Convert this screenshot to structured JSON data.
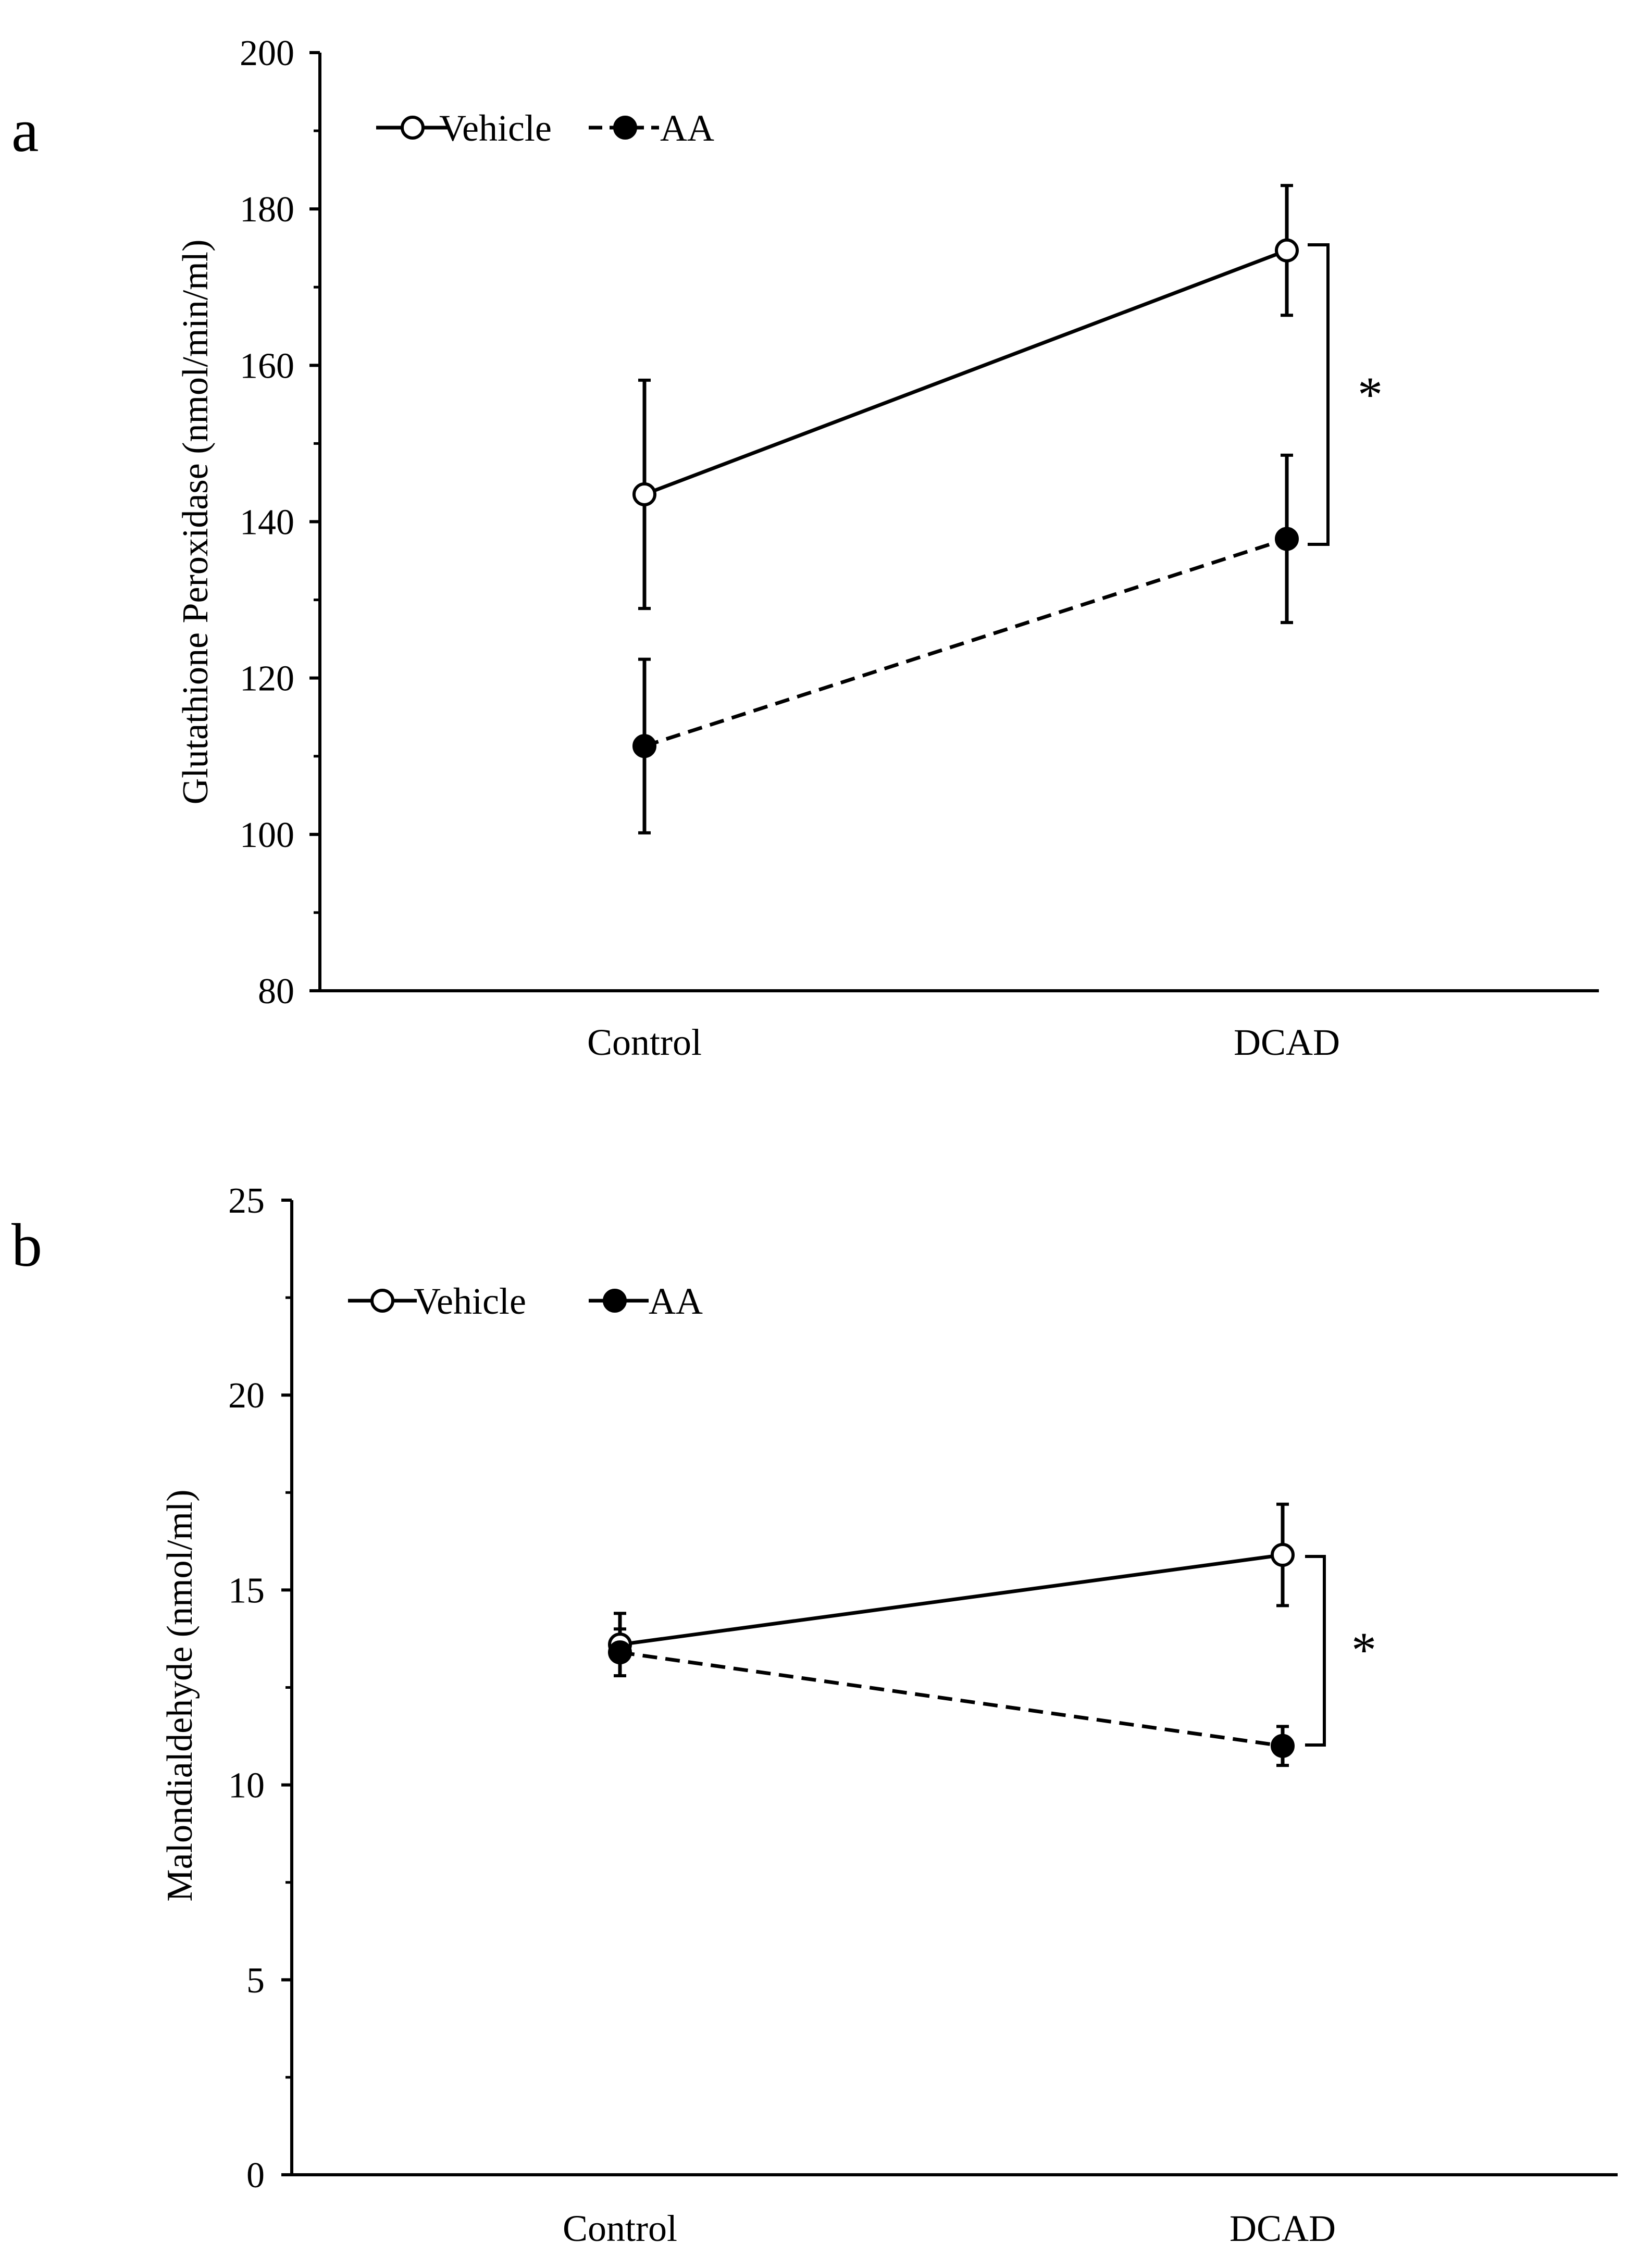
{
  "colors": {
    "ink": "#000000",
    "background": "#ffffff"
  },
  "chart_data": [
    {
      "panel_label": "a",
      "type": "line",
      "title": "",
      "xlabel": "",
      "ylabel": "Glutathione Peroxidase (nmol/min/ml)",
      "categories": [
        "Control",
        "DCAD"
      ],
      "ylim": [
        80,
        200
      ],
      "yticks": [
        "80",
        "100",
        "120",
        "140",
        "160",
        "180",
        "200"
      ],
      "legend": {
        "position": "top-left"
      },
      "series": [
        {
          "name": "Vehicle",
          "line_style": "solid",
          "marker": "open-circle",
          "values": [
            143.5,
            174.7
          ],
          "errors": [
            14.6,
            8.3
          ]
        },
        {
          "name": "AA",
          "line_style": "dashed",
          "marker": "filled-circle",
          "values": [
            111.3,
            137.8
          ],
          "errors": [
            11.1,
            10.7
          ]
        }
      ],
      "annotations": [
        {
          "text": "*",
          "between_category": "DCAD"
        }
      ]
    },
    {
      "panel_label": "b",
      "type": "line",
      "title": "",
      "xlabel": "",
      "ylabel": "Malondialdehyde (nmol/ml)",
      "categories": [
        "Control",
        "DCAD"
      ],
      "ylim": [
        0,
        25
      ],
      "yticks": [
        "0",
        "5",
        "10",
        "15",
        "20",
        "25"
      ],
      "legend": {
        "position": "top-left"
      },
      "series": [
        {
          "name": "Vehicle",
          "line_style": "solid",
          "marker": "open-circle",
          "values": [
            13.6,
            15.9
          ],
          "errors": [
            0.8,
            1.3
          ]
        },
        {
          "name": "AA",
          "line_style": "dashed",
          "marker": "filled-circle",
          "values": [
            13.4,
            11.0
          ],
          "errors": [
            0.6,
            0.5
          ]
        }
      ],
      "annotations": [
        {
          "text": "*",
          "between_category": "DCAD"
        }
      ]
    }
  ]
}
